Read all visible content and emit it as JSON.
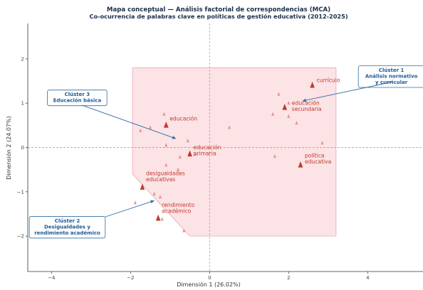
{
  "chart_data": {
    "type": "scatter",
    "title": "Mapa conceptual — Análisis factorial de correspondencias (MCA)",
    "subtitle": "Co-ocurrencia de palabras clave en políticas de gestión educativa (2012-2025)",
    "xlabel": "Dimensión 1 (26.02%)",
    "ylabel": "Dimensión 2 (24.07%)",
    "xlim": [
      -4.6,
      5.4
    ],
    "ylim": [
      -2.8,
      2.8
    ],
    "x_ticks": [
      "−4",
      "−2",
      "0",
      "2",
      "4"
    ],
    "y_ticks": [
      "−2",
      "−1",
      "0",
      "1",
      "2"
    ],
    "grid": false,
    "reference_lines": "dashed lines at x = 0 and y = 0",
    "colors": {
      "keyword_marker": "#c0392b",
      "minor_marker": "#e8938a",
      "region_fill": "#fbe3e6",
      "region_edge": "#e7a9b0",
      "cluster_box_edge": "#2e6da4",
      "cluster_text": "#1f5a96",
      "title": "#1a2e4a"
    },
    "region": {
      "vertices": [
        [
          -1.95,
          1.8
        ],
        [
          3.2,
          1.8
        ],
        [
          3.2,
          -2.0
        ],
        [
          -0.5,
          -2.0
        ],
        [
          -1.95,
          -0.6
        ]
      ]
    },
    "keywords": [
      {
        "label": "currículo",
        "x": 2.6,
        "y": 1.4
      },
      {
        "label": "educación\nsecundaria",
        "x": 1.9,
        "y": 0.9
      },
      {
        "label": "educación",
        "x": -1.1,
        "y": 0.5
      },
      {
        "label": "educación\nprimaria",
        "x": -0.5,
        "y": -0.15
      },
      {
        "label": "política\neducativa",
        "x": 2.3,
        "y": -0.4
      },
      {
        "label": "desigualdades\neducativas",
        "x": -1.7,
        "y": -0.9
      },
      {
        "label": "rendimiento\nacadémico",
        "x": -1.3,
        "y": -1.6
      }
    ],
    "minor_points": [
      {
        "x": 1.75,
        "y": 1.2
      },
      {
        "x": 2.0,
        "y": 1.0
      },
      {
        "x": 1.6,
        "y": 0.75
      },
      {
        "x": 2.0,
        "y": 0.7
      },
      {
        "x": 2.2,
        "y": 0.55
      },
      {
        "x": 2.85,
        "y": 0.1
      },
      {
        "x": 1.65,
        "y": -0.2
      },
      {
        "x": 0.5,
        "y": 0.45
      },
      {
        "x": -1.15,
        "y": 0.75
      },
      {
        "x": -1.5,
        "y": 0.45
      },
      {
        "x": -1.75,
        "y": 0.38
      },
      {
        "x": -1.1,
        "y": 0.05
      },
      {
        "x": -0.55,
        "y": 0.15
      },
      {
        "x": -0.75,
        "y": -0.22
      },
      {
        "x": -0.35,
        "y": -0.15
      },
      {
        "x": -1.1,
        "y": -0.4
      },
      {
        "x": -0.8,
        "y": -0.5
      },
      {
        "x": -1.4,
        "y": -1.05
      },
      {
        "x": -1.25,
        "y": -1.12
      },
      {
        "x": -1.88,
        "y": -1.25
      },
      {
        "x": -1.2,
        "y": -1.62
      },
      {
        "x": -0.65,
        "y": -1.88
      }
    ],
    "clusters": [
      {
        "title": "Clúster 1",
        "lines": [
          "Análisis normativo",
          "y curricular"
        ],
        "box_x": 4.6,
        "box_y": 1.6,
        "arrow_to": [
          2.35,
          1.05
        ]
      },
      {
        "title": "Clúster 3",
        "lines": [
          "Educación básica"
        ],
        "box_x": -3.35,
        "box_y": 1.12,
        "arrow_to": [
          -0.85,
          0.2
        ]
      },
      {
        "title": "Clúster 2",
        "lines": [
          "Desigualdades y",
          "rendimiento académico"
        ],
        "box_x": -3.6,
        "box_y": -1.8,
        "arrow_to": [
          -1.4,
          -1.2
        ]
      }
    ]
  }
}
